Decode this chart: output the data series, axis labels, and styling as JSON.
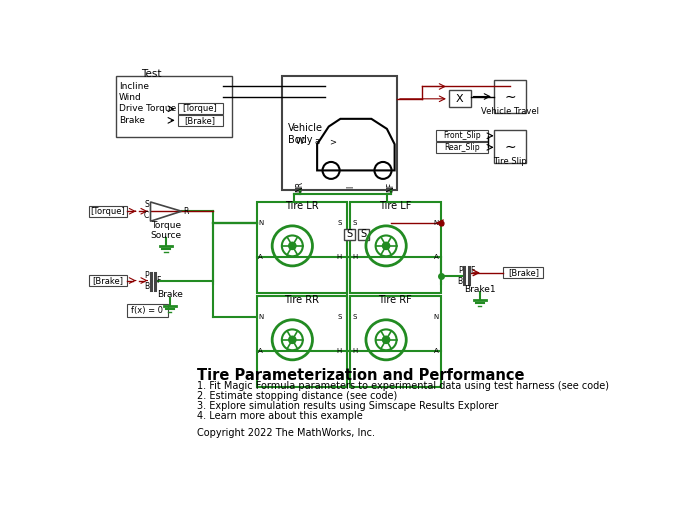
{
  "title": "Tire Parameterization and Performance",
  "items": [
    "1. Fit Magic Formula parameters to experimental data using test harness (see code)",
    "2. Estimate stopping distance (see code)",
    "3. Explore simulation results using Simscape Results Explorer",
    "4. Learn more about this example"
  ],
  "copyright": "Copyright 2022 The MathWorks, Inc.",
  "bg_color": "#ffffff",
  "green": "#228B22",
  "red": "#8B0000",
  "black": "#000000",
  "dkgray": "#444444"
}
